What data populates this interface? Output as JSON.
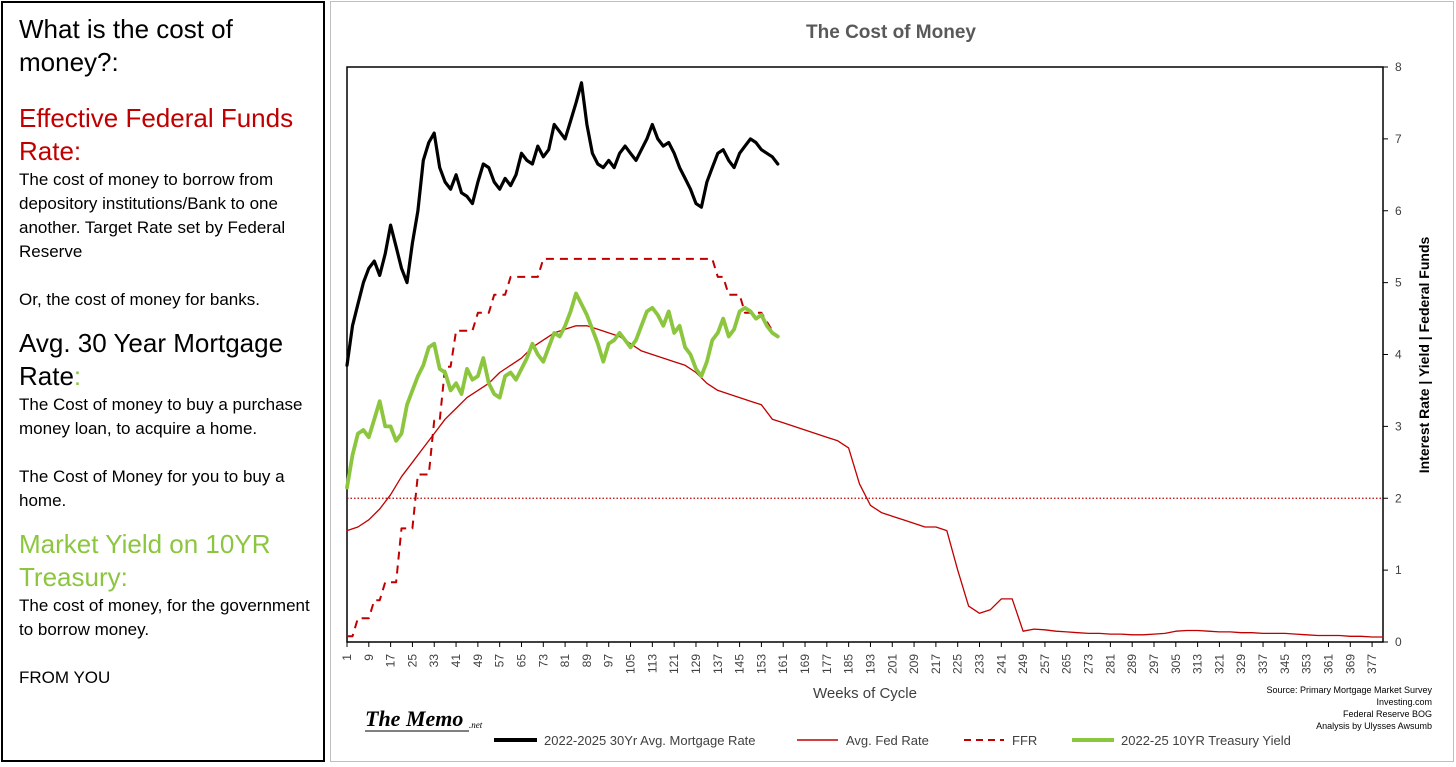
{
  "panel": {
    "question": "What is the cost of money?:",
    "effr_heading": "Effective Federal Funds Rate:",
    "effr_desc": "The cost of money to borrow from depository institutions/Bank to one another. Target Rate set by Federal Reserve",
    "effr_note": "Or, the cost of money for banks.",
    "mortgage_heading_a": "Avg. 30 Year Mortgage Rate",
    "mortgage_heading_b": ":",
    "mortgage_desc": "The Cost of money to buy a purchase money loan, to acquire a home.",
    "mortgage_note": "The Cost of Money for you to buy a home.",
    "treasury_heading": "Market Yield on 10YR Treasury:",
    "treasury_desc": "The cost of money, for the government to borrow money.",
    "footer": "FROM YOU"
  },
  "colors": {
    "mortgage": "#000000",
    "fed": "#c00000",
    "ffr": "#c00000",
    "treasury": "#8cc63f",
    "reference": "#c00000"
  },
  "logo": {
    "main": "The Memo",
    "sub": ".net"
  },
  "source": [
    "Source: Primary Mortgage Market Survey",
    "Investing.com",
    "Federal Reserve BOG",
    "Analysis by Ulysses Awsumb"
  ],
  "chart_data": {
    "type": "line",
    "title": "The Cost of Money",
    "xlabel": "Weeks of Cycle",
    "ylabel": "Interest Rate | Yield | Federal Funds",
    "xlim": [
      1,
      381
    ],
    "ylim": [
      0,
      8
    ],
    "y_axis_side": "right",
    "yticks": [
      0,
      1,
      2,
      3,
      4,
      5,
      6,
      7,
      8
    ],
    "xticks": [
      1,
      9,
      17,
      25,
      33,
      41,
      49,
      57,
      65,
      73,
      81,
      89,
      97,
      105,
      113,
      121,
      129,
      137,
      145,
      153,
      161,
      169,
      177,
      185,
      193,
      201,
      209,
      217,
      225,
      233,
      241,
      249,
      257,
      265,
      273,
      281,
      289,
      297,
      305,
      313,
      321,
      329,
      337,
      345,
      353,
      361,
      369,
      377
    ],
    "reference_line": {
      "y": 2,
      "style": "dotted"
    },
    "legend_position": "bottom",
    "series": [
      {
        "name": "2022-2025 30Yr Avg. Mortgage Rate",
        "style": "solid-thick",
        "x": [
          1,
          3,
          5,
          7,
          9,
          11,
          13,
          15,
          17,
          19,
          21,
          23,
          25,
          27,
          29,
          31,
          33,
          35,
          37,
          39,
          41,
          43,
          45,
          47,
          49,
          51,
          53,
          55,
          57,
          59,
          61,
          63,
          65,
          67,
          69,
          71,
          73,
          75,
          77,
          79,
          81,
          83,
          85,
          87,
          89,
          91,
          93,
          95,
          97,
          99,
          101,
          103,
          105,
          107,
          109,
          111,
          113,
          115,
          117,
          119,
          121,
          123,
          125,
          127,
          129,
          131,
          133,
          135,
          137,
          139,
          141,
          143,
          145,
          147,
          149,
          151,
          153,
          155,
          157,
          159
        ],
        "values": [
          3.85,
          4.4,
          4.7,
          5.0,
          5.2,
          5.3,
          5.1,
          5.4,
          5.8,
          5.5,
          5.2,
          5.0,
          5.55,
          6.0,
          6.7,
          6.95,
          7.08,
          6.6,
          6.4,
          6.3,
          6.5,
          6.25,
          6.2,
          6.1,
          6.4,
          6.65,
          6.6,
          6.4,
          6.3,
          6.45,
          6.35,
          6.5,
          6.8,
          6.7,
          6.65,
          6.9,
          6.75,
          6.85,
          7.2,
          7.1,
          7.0,
          7.25,
          7.5,
          7.78,
          7.2,
          6.8,
          6.65,
          6.6,
          6.7,
          6.6,
          6.8,
          6.9,
          6.8,
          6.7,
          6.85,
          7.0,
          7.2,
          7.0,
          6.9,
          6.95,
          6.8,
          6.6,
          6.45,
          6.3,
          6.1,
          6.05,
          6.4,
          6.6,
          6.8,
          6.85,
          6.7,
          6.6,
          6.8,
          6.9,
          7.0,
          6.95,
          6.85,
          6.8,
          6.75,
          6.65
        ]
      },
      {
        "name": "Avg. Fed Rate",
        "style": "solid-thin",
        "x": [
          1,
          5,
          9,
          13,
          17,
          21,
          25,
          29,
          33,
          37,
          41,
          45,
          49,
          53,
          57,
          61,
          65,
          69,
          73,
          77,
          81,
          85,
          89,
          93,
          97,
          101,
          105,
          109,
          113,
          117,
          121,
          125,
          129,
          133,
          137,
          141,
          145,
          149,
          153,
          157,
          161,
          165,
          169,
          173,
          177,
          181,
          185,
          189,
          193,
          197,
          201,
          205,
          209,
          213,
          217,
          221,
          225,
          229,
          233,
          237,
          241,
          245,
          249,
          253,
          257,
          261,
          265,
          269,
          273,
          277,
          281,
          285,
          289,
          293,
          297,
          301,
          305,
          309,
          313,
          317,
          321,
          325,
          329,
          333,
          337,
          341,
          345,
          349,
          353,
          357,
          361,
          365,
          369,
          373,
          377,
          381
        ],
        "values": [
          1.55,
          1.6,
          1.7,
          1.85,
          2.05,
          2.3,
          2.5,
          2.7,
          2.9,
          3.1,
          3.25,
          3.4,
          3.5,
          3.6,
          3.75,
          3.85,
          3.95,
          4.1,
          4.2,
          4.3,
          4.35,
          4.4,
          4.4,
          4.35,
          4.3,
          4.25,
          4.15,
          4.05,
          4.0,
          3.95,
          3.9,
          3.85,
          3.75,
          3.6,
          3.5,
          3.45,
          3.4,
          3.35,
          3.3,
          3.1,
          3.05,
          3.0,
          2.95,
          2.9,
          2.85,
          2.8,
          2.7,
          2.2,
          1.9,
          1.8,
          1.75,
          1.7,
          1.65,
          1.6,
          1.6,
          1.55,
          1.0,
          0.5,
          0.4,
          0.45,
          0.6,
          0.6,
          0.15,
          0.18,
          0.17,
          0.15,
          0.14,
          0.13,
          0.12,
          0.12,
          0.11,
          0.11,
          0.1,
          0.1,
          0.11,
          0.12,
          0.15,
          0.16,
          0.16,
          0.15,
          0.14,
          0.14,
          0.13,
          0.13,
          0.12,
          0.12,
          0.12,
          0.11,
          0.1,
          0.09,
          0.09,
          0.09,
          0.08,
          0.08,
          0.07,
          0.07
        ]
      },
      {
        "name": "FFR",
        "style": "dashed",
        "x": [
          1,
          3,
          5,
          9,
          11,
          13,
          15,
          19,
          21,
          25,
          27,
          31,
          33,
          35,
          37,
          39,
          41,
          43,
          47,
          49,
          53,
          55,
          59,
          61,
          65,
          67,
          71,
          73,
          77,
          125,
          129,
          131,
          135,
          137,
          139,
          141,
          145,
          147,
          151,
          153,
          157
        ],
        "values": [
          0.08,
          0.08,
          0.33,
          0.33,
          0.58,
          0.58,
          0.83,
          0.83,
          1.58,
          1.58,
          2.33,
          2.33,
          3.08,
          3.08,
          3.83,
          3.83,
          4.33,
          4.33,
          4.33,
          4.58,
          4.58,
          4.83,
          4.83,
          5.08,
          5.08,
          5.08,
          5.08,
          5.33,
          5.33,
          5.33,
          5.33,
          5.33,
          5.33,
          5.08,
          5.08,
          4.83,
          4.83,
          4.58,
          4.58,
          4.58,
          4.33
        ]
      },
      {
        "name": "2022-25 10YR Treasury Yield",
        "style": "solid-thick",
        "x": [
          1,
          3,
          5,
          7,
          9,
          11,
          13,
          15,
          17,
          19,
          21,
          23,
          25,
          27,
          29,
          31,
          33,
          35,
          37,
          39,
          41,
          43,
          45,
          47,
          49,
          51,
          53,
          55,
          57,
          59,
          61,
          63,
          65,
          67,
          69,
          71,
          73,
          75,
          77,
          79,
          81,
          83,
          85,
          87,
          89,
          91,
          93,
          95,
          97,
          99,
          101,
          103,
          105,
          107,
          109,
          111,
          113,
          115,
          117,
          119,
          121,
          123,
          125,
          127,
          129,
          131,
          133,
          135,
          137,
          139,
          141,
          143,
          145,
          147,
          149,
          151,
          153,
          155,
          157,
          159
        ],
        "values": [
          2.15,
          2.6,
          2.9,
          2.95,
          2.85,
          3.1,
          3.35,
          3.0,
          3.0,
          2.8,
          2.9,
          3.3,
          3.5,
          3.7,
          3.85,
          4.1,
          4.15,
          3.8,
          3.75,
          3.5,
          3.6,
          3.45,
          3.8,
          3.65,
          3.7,
          3.95,
          3.6,
          3.45,
          3.4,
          3.7,
          3.75,
          3.65,
          3.8,
          3.95,
          4.15,
          4.0,
          3.9,
          4.1,
          4.3,
          4.25,
          4.4,
          4.6,
          4.85,
          4.7,
          4.55,
          4.35,
          4.15,
          3.9,
          4.15,
          4.2,
          4.3,
          4.2,
          4.1,
          4.2,
          4.4,
          4.6,
          4.65,
          4.55,
          4.4,
          4.6,
          4.3,
          4.4,
          4.1,
          4.0,
          3.8,
          3.7,
          3.9,
          4.2,
          4.3,
          4.5,
          4.25,
          4.35,
          4.6,
          4.65,
          4.6,
          4.5,
          4.55,
          4.4,
          4.3,
          4.25
        ]
      }
    ]
  }
}
